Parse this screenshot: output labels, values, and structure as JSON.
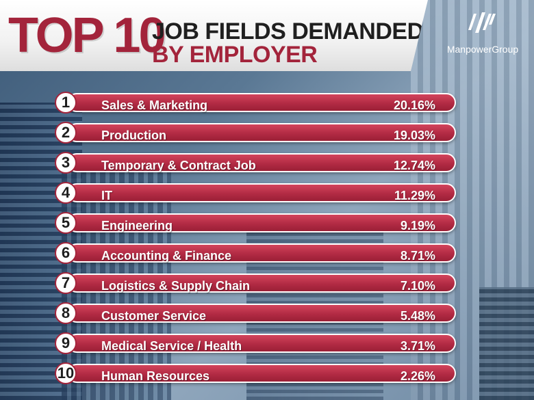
{
  "header": {
    "top10": "TOP 10",
    "line1": "JOB FIELDS DEMANDED",
    "line2": "BY EMPLOYER"
  },
  "brand": {
    "name": "ManpowerGroup",
    "icon": "manpower-slash-logo-icon"
  },
  "colors": {
    "accent": "#a3243b",
    "bar": "#b22b44",
    "bar_border": "#ffffff",
    "rank_bg": "#ffffff"
  },
  "chart_data": {
    "type": "bar",
    "orientation": "horizontal",
    "title": "TOP 10 JOB FIELDS DEMANDED BY EMPLOYER",
    "categories": [
      "Sales & Marketing",
      "Production",
      "Temporary & Contract Job",
      "IT",
      "Engineering",
      "Accounting & Finance",
      "Logistics & Supply Chain",
      "Customer Service",
      "Medical Service / Health",
      "Human Resources"
    ],
    "ranks": [
      "1",
      "2",
      "3",
      "4",
      "5",
      "6",
      "7",
      "8",
      "9",
      "10"
    ],
    "values": [
      20.16,
      19.03,
      12.74,
      11.29,
      9.19,
      8.71,
      7.1,
      5.48,
      3.71,
      2.26
    ],
    "value_labels": [
      "20.16%",
      "19.03%",
      "12.74%",
      "11.29%",
      "9.19%",
      "8.71%",
      "7.10%",
      "5.48%",
      "3.71%",
      "2.26%"
    ],
    "unit": "%"
  }
}
